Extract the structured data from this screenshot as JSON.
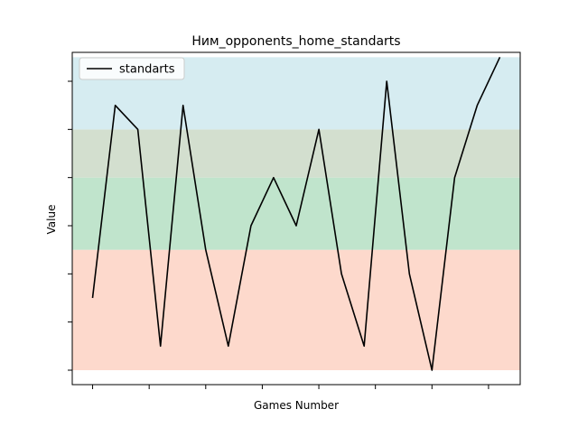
{
  "chart_data": {
    "type": "line",
    "title": "Ним_opponents_home_standarts",
    "xlabel": "Games Number",
    "ylabel": "Value",
    "x": [
      1,
      2,
      3,
      4,
      5,
      6,
      7,
      8,
      9,
      10,
      11,
      12,
      13,
      14,
      15,
      16,
      17,
      18,
      19
    ],
    "xlim": [
      0.1,
      19.9
    ],
    "ylim": [
      -0.3,
      6.6
    ],
    "y_ticks_labeled": false,
    "x_ticks_labeled": false,
    "series": [
      {
        "name": "standarts",
        "color": "#000000",
        "values": [
          1.5,
          5.5,
          5.0,
          0.5,
          5.5,
          2.5,
          0.5,
          3.0,
          4.0,
          3.0,
          5.0,
          2.0,
          0.5,
          6.0,
          2.0,
          0.0,
          4.0,
          5.5,
          6.5
        ]
      }
    ],
    "bands": [
      {
        "from": 0.0,
        "to": 2.5,
        "color": "#fdd9cc"
      },
      {
        "from": 2.5,
        "to": 4.0,
        "color": "#c0e4cc"
      },
      {
        "from": 4.0,
        "to": 5.0,
        "color": "#d3dfcf"
      },
      {
        "from": 5.0,
        "to": 6.5,
        "color": "#d6ecf1"
      }
    ],
    "legend_placement": "top-left",
    "grid": false
  }
}
